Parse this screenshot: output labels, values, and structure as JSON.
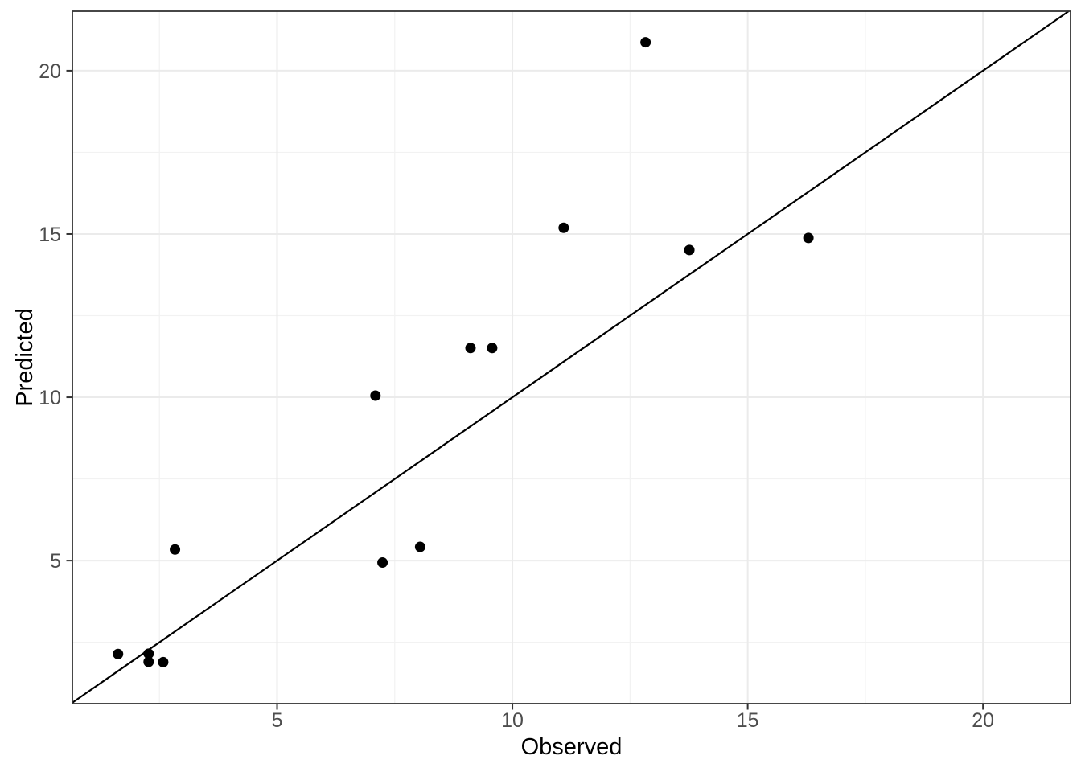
{
  "chart_data": {
    "type": "scatter",
    "title": "",
    "xlabel": "Observed",
    "ylabel": "Predicted",
    "xlim": [
      0.65,
      21.86
    ],
    "ylim": [
      0.62,
      21.82
    ],
    "x_ticks": [
      5,
      10,
      15,
      20
    ],
    "y_ticks": [
      5,
      10,
      15,
      20
    ],
    "x_minor_ticks": [
      2.5,
      7.5,
      12.5,
      17.5
    ],
    "y_minor_ticks": [
      2.5,
      7.5,
      12.5,
      17.5
    ],
    "grid": "major-and-minor",
    "legend": "none",
    "points": [
      {
        "observed": 1.62,
        "predicted": 2.14
      },
      {
        "observed": 2.27,
        "predicted": 2.15
      },
      {
        "observed": 2.27,
        "predicted": 1.9
      },
      {
        "observed": 2.58,
        "predicted": 1.89
      },
      {
        "observed": 2.83,
        "predicted": 5.34
      },
      {
        "observed": 7.09,
        "predicted": 10.05
      },
      {
        "observed": 7.24,
        "predicted": 4.94
      },
      {
        "observed": 8.04,
        "predicted": 5.42
      },
      {
        "observed": 9.11,
        "predicted": 11.51
      },
      {
        "observed": 9.57,
        "predicted": 11.51
      },
      {
        "observed": 11.09,
        "predicted": 15.19
      },
      {
        "observed": 12.83,
        "predicted": 20.87
      },
      {
        "observed": 13.76,
        "predicted": 14.51
      },
      {
        "observed": 16.29,
        "predicted": 14.88
      }
    ],
    "reference_line": {
      "name": "identity-line",
      "slope": 1,
      "intercept": 0
    },
    "point_radius_px": 6.5,
    "colors": {
      "background": "#ffffff",
      "point": "#000000",
      "reference_line": "#000000",
      "grid_major": "#ebebeb",
      "grid_minor": "#f2f2f2",
      "panel_border": "#333333",
      "tick_mark": "#333333",
      "tick_label": "#4d4d4d",
      "axis_title": "#000000"
    }
  }
}
